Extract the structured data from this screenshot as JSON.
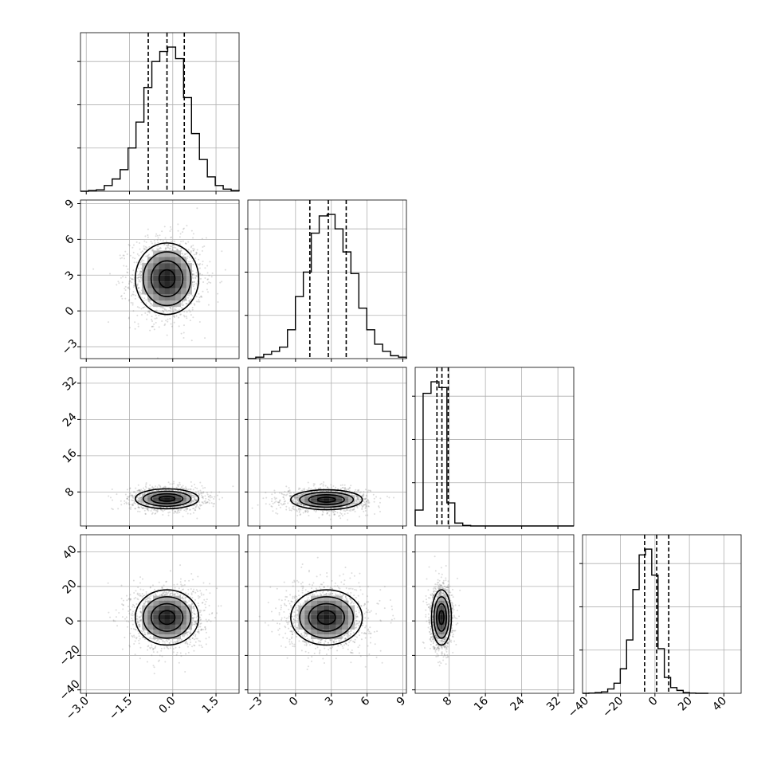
{
  "chart_data": [
    {
      "type": "histogram",
      "panel": "row-1-col-1",
      "parameter": 0,
      "xlim": [
        -3.2,
        2.3
      ],
      "x_ticks": [
        "-3.0",
        "-1.5",
        "0.0",
        "1.5"
      ],
      "bin_edges_start": -3.2,
      "bin_width": 0.275,
      "counts": [
        0.0,
        0.005,
        0.01,
        0.04,
        0.085,
        0.15,
        0.3,
        0.48,
        0.72,
        0.9,
        0.97,
        1.0,
        0.92,
        0.65,
        0.4,
        0.22,
        0.1,
        0.04,
        0.015,
        0.005
      ],
      "quantiles": [
        -0.85,
        -0.2,
        0.4
      ]
    },
    {
      "type": "histogram",
      "panel": "row-2-col-2",
      "parameter": 1,
      "xlim": [
        -4,
        9.3
      ],
      "x_ticks": [
        "-3",
        "0",
        "3",
        "6",
        "9"
      ],
      "bin_edges_start": -4,
      "bin_width": 0.665,
      "counts": [
        0.0,
        0.01,
        0.03,
        0.05,
        0.08,
        0.2,
        0.43,
        0.6,
        0.87,
        0.99,
        1.0,
        0.9,
        0.74,
        0.59,
        0.35,
        0.2,
        0.1,
        0.05,
        0.02,
        0.01
      ],
      "quantiles": [
        1.2,
        2.75,
        4.25
      ]
    },
    {
      "type": "histogram",
      "panel": "row-3-col-3",
      "parameter": 2,
      "xlim": [
        0.5,
        35.5
      ],
      "x_ticks": [
        "8",
        "16",
        "24",
        "32"
      ],
      "bin_edges_start": 0.5,
      "bin_width": 1.75,
      "counts": [
        0.11,
        0.92,
        1.0,
        0.96,
        0.16,
        0.02,
        0.004,
        0.0,
        0.0,
        0.0,
        0.0,
        0.0,
        0.0,
        0.0,
        0.0,
        0.0,
        0.0,
        0.0,
        0.0,
        0.0
      ],
      "quantiles": [
        5.3,
        6.4,
        7.8
      ]
    },
    {
      "type": "histogram",
      "panel": "row-4-col-4",
      "parameter": 3,
      "xlim": [
        -42,
        50
      ],
      "x_ticks": [
        "-40",
        "-20",
        "0",
        "20",
        "40"
      ],
      "bin_edges_start": -42,
      "bin_width": 3.65,
      "counts": [
        0.0,
        0.002,
        0.005,
        0.01,
        0.03,
        0.07,
        0.17,
        0.37,
        0.72,
        0.96,
        1.0,
        0.82,
        0.31,
        0.11,
        0.04,
        0.02,
        0.005,
        0.002,
        0.0,
        0.0
      ],
      "quantiles": [
        -6.0,
        1.0,
        8.0
      ]
    },
    {
      "type": "scatter-contour",
      "panel": "row-2-col-1",
      "x_param": 0,
      "y_param": 1,
      "xlim": [
        -3.2,
        2.3
      ],
      "ylim": [
        -4,
        9.3
      ],
      "x_ticks": [],
      "y_ticks": [
        "-3",
        "0",
        "3",
        "6",
        "9"
      ],
      "center": [
        -0.2,
        2.7
      ],
      "sigma": [
        0.55,
        1.5
      ],
      "contour_levels_sigma": [
        0.5,
        1.0,
        1.5,
        2.0
      ]
    },
    {
      "type": "scatter-contour",
      "panel": "row-3-col-1",
      "x_param": 0,
      "y_param": 2,
      "xlim": [
        -3.2,
        2.3
      ],
      "ylim": [
        0.5,
        35.5
      ],
      "x_ticks": [],
      "y_ticks": [
        "8",
        "16",
        "24",
        "32"
      ],
      "center": [
        -0.2,
        6.5
      ],
      "sigma": [
        0.55,
        1.1
      ],
      "contour_levels_sigma": [
        0.5,
        1.0,
        1.5,
        2.0
      ]
    },
    {
      "type": "scatter-contour",
      "panel": "row-3-col-2",
      "x_param": 1,
      "y_param": 2,
      "xlim": [
        -4,
        9.3
      ],
      "ylim": [
        0.5,
        35.5
      ],
      "x_ticks": [],
      "y_ticks": [],
      "center": [
        2.6,
        6.3
      ],
      "sigma": [
        1.5,
        1.1
      ],
      "contour_levels_sigma": [
        0.5,
        1.0,
        1.5,
        2.0
      ]
    },
    {
      "type": "scatter-contour",
      "panel": "row-4-col-1",
      "x_param": 0,
      "y_param": 3,
      "xlim": [
        -3.2,
        2.3
      ],
      "ylim": [
        -42,
        50
      ],
      "x_ticks": [
        "-3.0",
        "-1.5",
        "0.0",
        "1.5"
      ],
      "y_ticks": [
        "-40",
        "-20",
        "0",
        "20",
        "40"
      ],
      "center": [
        -0.2,
        2.0
      ],
      "sigma": [
        0.55,
        8.0
      ],
      "contour_levels_sigma": [
        0.5,
        1.0,
        1.5,
        2.0
      ]
    },
    {
      "type": "scatter-contour",
      "panel": "row-4-col-2",
      "x_param": 1,
      "y_param": 3,
      "xlim": [
        -4,
        9.3
      ],
      "ylim": [
        -42,
        50
      ],
      "x_ticks": [
        "-3",
        "0",
        "3",
        "6",
        "9"
      ],
      "y_ticks": [],
      "center": [
        2.6,
        2.0
      ],
      "sigma": [
        1.5,
        8.0
      ],
      "contour_levels_sigma": [
        0.5,
        1.0,
        1.5,
        2.0
      ]
    },
    {
      "type": "scatter-contour",
      "panel": "row-4-col-3",
      "x_param": 2,
      "y_param": 3,
      "xlim": [
        0.5,
        35.5
      ],
      "ylim": [
        -42,
        50
      ],
      "x_ticks": [
        "8",
        "16",
        "24",
        "32"
      ],
      "y_ticks": [],
      "center": [
        6.3,
        2.0
      ],
      "sigma": [
        1.1,
        8.0
      ],
      "contour_levels_sigma": [
        0.5,
        1.0,
        1.5,
        2.0
      ]
    }
  ],
  "colors": {
    "line": "#000000",
    "grid": "#b0b0b0",
    "points": "#808080"
  }
}
